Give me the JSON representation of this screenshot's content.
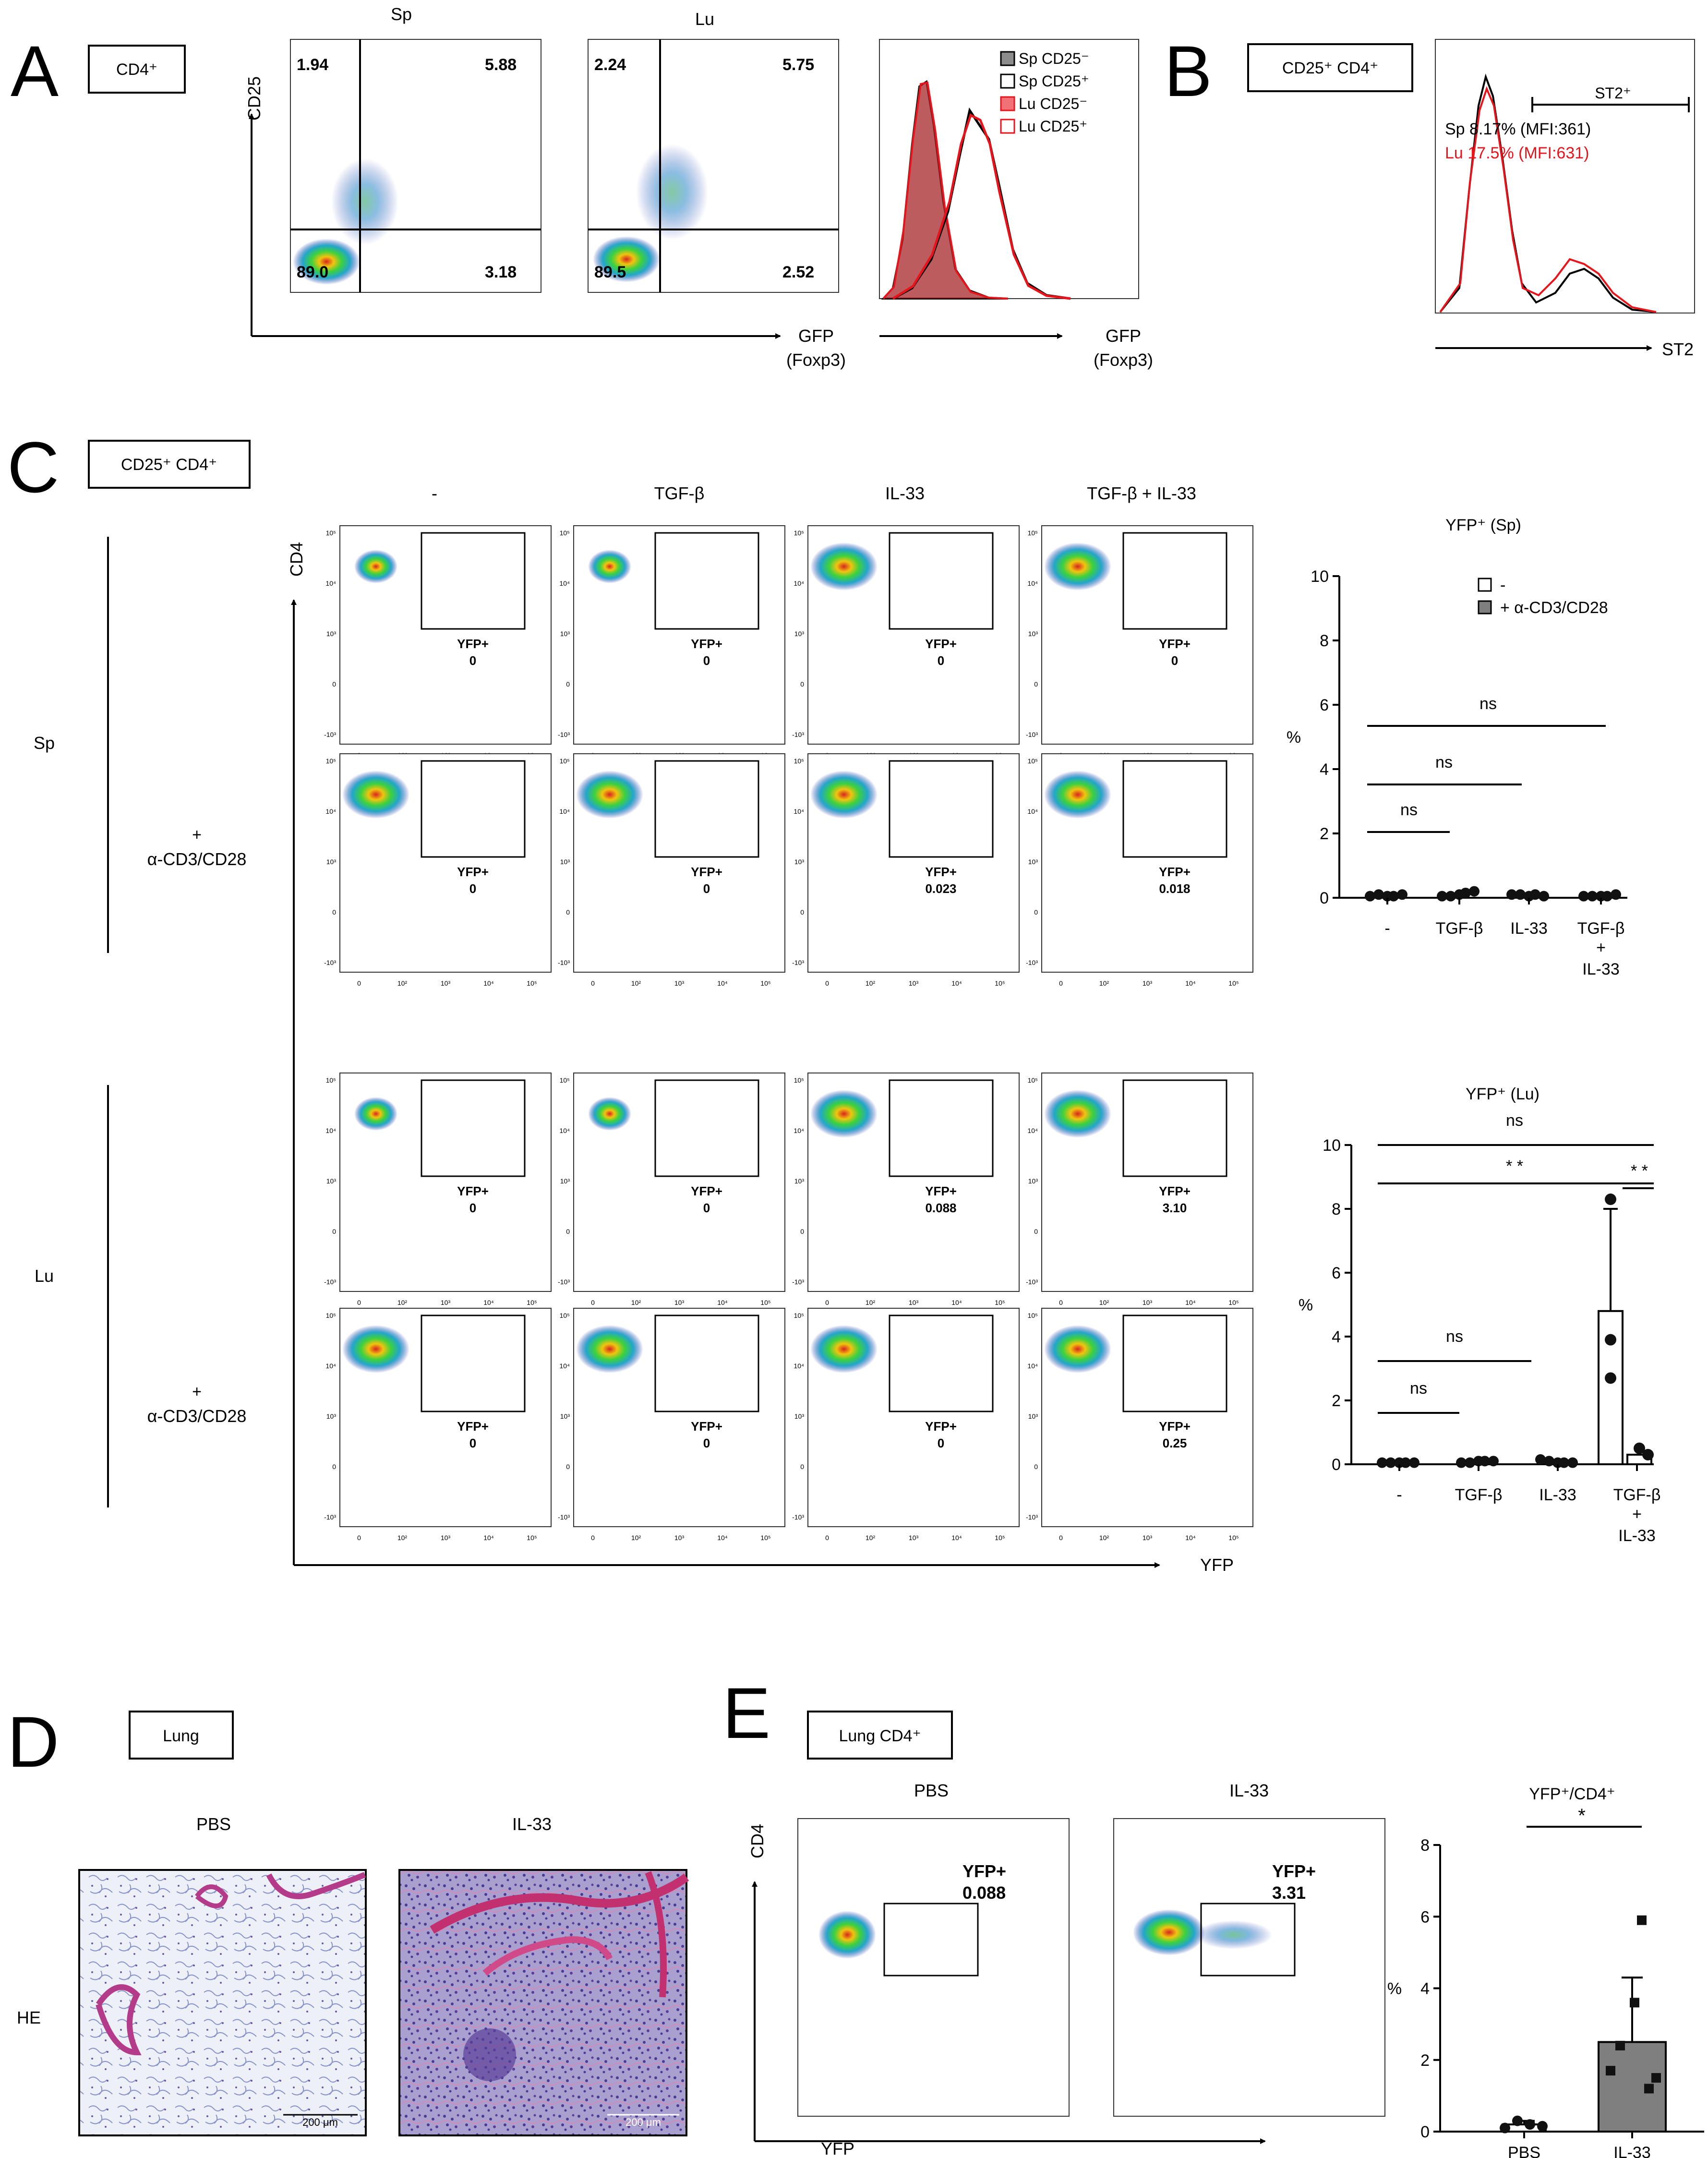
{
  "colors": {
    "sp": "#000000",
    "lu": "#e8141b",
    "spFill": "#8c8c8c",
    "luFill": "#e8141b",
    "barGray": "#7f7f7f",
    "dot": "#111111"
  },
  "panelA": {
    "letter": "A",
    "box": "CD4⁺",
    "plots": [
      {
        "title": "Sp",
        "q": [
          "1.94",
          "5.88",
          "89.0",
          "3.18"
        ]
      },
      {
        "title": "Lu",
        "q": [
          "2.24",
          "5.75",
          "89.5",
          "2.52"
        ]
      }
    ],
    "yAxis": "CD25",
    "xAxis": "GFP",
    "xAxisSub": "(Foxp3)",
    "legend": [
      "Sp CD25⁻",
      "Sp CD25⁺",
      "Lu CD25⁻",
      "Lu CD25⁺"
    ]
  },
  "panelB": {
    "letter": "B",
    "box": "CD25⁺ CD4⁺",
    "gate": "ST2⁺",
    "sp": "Sp 8.17% (MFI:361)",
    "lu": "Lu 17.5% (MFI:631)",
    "xAxis": "ST2"
  },
  "panelC": {
    "letter": "C",
    "box": "CD25⁺ CD4⁺",
    "cols": [
      "-",
      "TGF-β",
      "IL-33",
      "TGF-β + IL-33"
    ],
    "groups": [
      "Sp",
      "Lu"
    ],
    "stim": [
      "+",
      "α-CD3/CD28"
    ],
    "yAxis": "CD4",
    "xAxis": "YFP",
    "gate": "YFP+",
    "sp": [
      [
        "0",
        "0",
        "0",
        "0"
      ],
      [
        "0",
        "0",
        "0.023",
        "0.018"
      ]
    ],
    "lu": [
      [
        "0",
        "0",
        "0.088",
        "3.10"
      ],
      [
        "0",
        "0",
        "0",
        "0.25"
      ]
    ],
    "ticksX": [
      "0",
      "10²",
      "10³",
      "10⁴",
      "10⁵"
    ],
    "ticksY": [
      "10⁵",
      "10⁴",
      "10³",
      "0",
      "-10³"
    ]
  },
  "panelD": {
    "letter": "D",
    "box": "Lung",
    "cols": [
      "PBS",
      "IL-33"
    ],
    "row": "HE",
    "scale": "200 μm"
  },
  "panelE": {
    "letter": "E",
    "box": "Lung CD4⁺",
    "cols": [
      "PBS",
      "IL-33"
    ],
    "gate": "YFP+",
    "vals": [
      "0.088",
      "3.31"
    ],
    "yAxis": "CD4",
    "xAxis": "YFP"
  },
  "chart_data": [
    {
      "type": "bar",
      "title": "YFP⁺ (Sp)",
      "ylabel": "%",
      "ylim": [
        0,
        10
      ],
      "yticks": [
        "0",
        "2",
        "4",
        "6",
        "8",
        "10"
      ],
      "categories": [
        "-",
        "TGF-β",
        "IL-33",
        "TGF-β",
        "+",
        "IL-33"
      ],
      "legend": [
        "-",
        "+ α-CD3/CD28"
      ],
      "series": [
        {
          "name": "-",
          "means": [
            0,
            0,
            0,
            0
          ],
          "points": [
            [
              0.05,
              0.1,
              0.05
            ],
            [
              0.05,
              0.05,
              0.1
            ],
            [
              0.1,
              0.1,
              0.05
            ],
            [
              0.05,
              0.05,
              0.05
            ]
          ]
        },
        {
          "name": "+ α-CD3/CD28",
          "means": [
            0.05,
            0.1,
            0.1,
            0.05
          ],
          "points": [
            [
              0.05,
              0.1
            ],
            [
              0.15,
              0.2
            ],
            [
              0.1,
              0.05
            ],
            [
              0.05,
              0.1
            ]
          ]
        }
      ],
      "sig": [
        "ns",
        "ns",
        "ns"
      ]
    },
    {
      "type": "bar",
      "title": "YFP⁺ (Lu)",
      "ylabel": "%",
      "ylim": [
        0,
        10
      ],
      "yticks": [
        "0",
        "2",
        "4",
        "6",
        "8",
        "10"
      ],
      "categories": [
        "-",
        "TGF-β",
        "IL-33",
        "TGF-β",
        "+",
        "IL-33"
      ],
      "series": [
        {
          "name": "-",
          "means": [
            0,
            0,
            0.1,
            4.8
          ],
          "err": [
            0,
            0,
            0,
            3.2
          ],
          "points": [
            [
              0.05,
              0.05,
              0.05
            ],
            [
              0.05,
              0.05,
              0.1
            ],
            [
              0.15,
              0.1,
              0.05
            ],
            [
              8.3,
              3.9,
              2.7
            ]
          ]
        },
        {
          "name": "+ α-CD3/CD28",
          "means": [
            0.05,
            0.05,
            0.05,
            0.3
          ],
          "err": [
            0,
            0,
            0,
            0.2
          ],
          "points": [
            [
              0.05,
              0.05
            ],
            [
              0.1,
              0.1
            ],
            [
              0.05,
              0.05
            ],
            [
              0.5,
              0.3
            ]
          ]
        }
      ],
      "sig": [
        "ns",
        "* *",
        "* *",
        "ns",
        "ns"
      ]
    },
    {
      "type": "bar",
      "title": "YFP⁺/CD4⁺",
      "ylabel": "%",
      "ylim": [
        0,
        8
      ],
      "yticks": [
        "0",
        "2",
        "4",
        "6",
        "8"
      ],
      "categories": [
        "PBS",
        "IL-33"
      ],
      "values": [
        0.2,
        2.5
      ],
      "err": [
        0.1,
        1.8
      ],
      "points": [
        [
          0.1,
          0.3,
          0.2,
          0.15
        ],
        [
          5.9,
          3.6,
          2.4,
          1.7,
          1.2,
          1.5
        ]
      ],
      "sig": [
        "*"
      ]
    }
  ]
}
